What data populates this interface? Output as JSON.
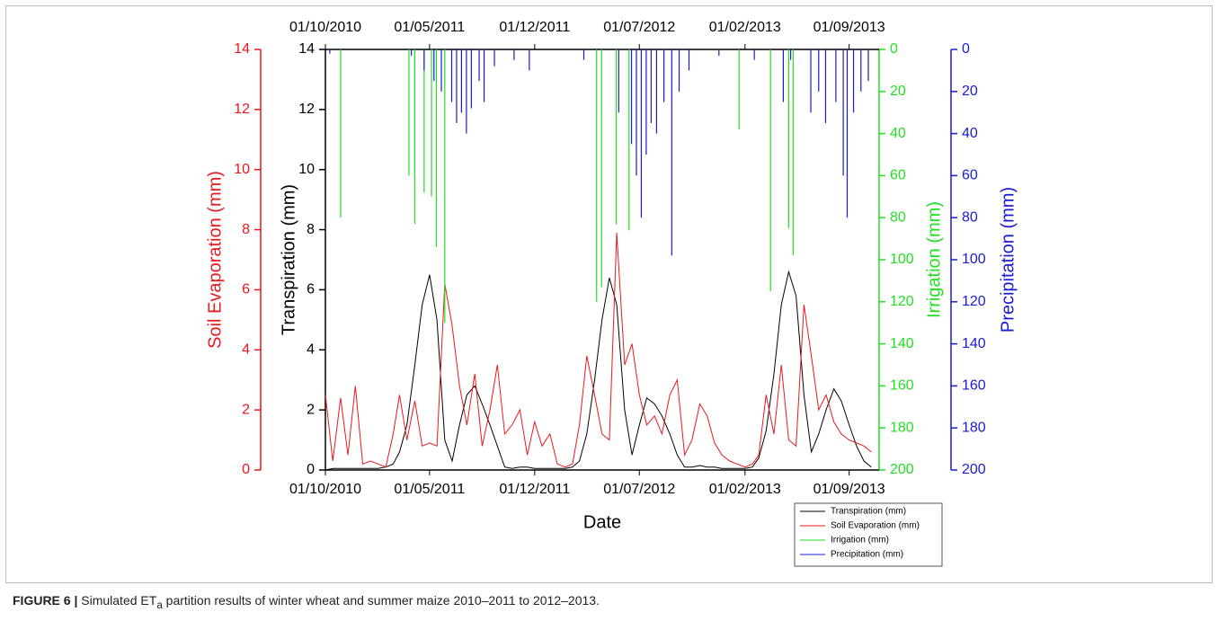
{
  "chart_data": {
    "type": "line",
    "xlabel": "Date",
    "ylabel": "Transpiration (mm)",
    "y2label": "Soil Evaporation (mm)",
    "y3label": "Irrigation (mm)",
    "y4label": "Precipitation (mm)",
    "xlim": [
      "2010-10-01",
      "2013-11-01"
    ],
    "xticks": [
      {
        "value": "2010-10-01",
        "label": "01/10/2010"
      },
      {
        "value": "2011-05-01",
        "label": "01/05/2011"
      },
      {
        "value": "2011-12-01",
        "label": "01/12/2011"
      },
      {
        "value": "2012-07-01",
        "label": "01/07/2012"
      },
      {
        "value": "2013-02-01",
        "label": "01/02/2013"
      },
      {
        "value": "2013-09-01",
        "label": "01/09/2013"
      }
    ],
    "ylim": [
      0,
      14
    ],
    "yticks": [
      0,
      2,
      4,
      6,
      8,
      10,
      12,
      14
    ],
    "y2lim": [
      0,
      14
    ],
    "y2ticks": [
      0,
      2,
      4,
      6,
      8,
      10,
      12,
      14
    ],
    "y3lim": [
      200,
      0
    ],
    "y3ticks": [
      0,
      20,
      40,
      60,
      80,
      100,
      120,
      140,
      160,
      180,
      200
    ],
    "y4lim": [
      200,
      0
    ],
    "y4ticks": [
      0,
      20,
      40,
      60,
      80,
      100,
      120,
      140,
      160,
      180,
      200
    ],
    "legend": "lower right",
    "series": [
      {
        "name": "Transpiration (mm)",
        "color": "#000000",
        "axis": "y",
        "style": "line",
        "x": [
          "2010-10-01",
          "2010-10-16",
          "2010-11-01",
          "2010-11-16",
          "2010-12-01",
          "2010-12-16",
          "2011-01-01",
          "2011-01-16",
          "2011-02-01",
          "2011-02-16",
          "2011-03-01",
          "2011-03-16",
          "2011-04-01",
          "2011-04-16",
          "2011-05-01",
          "2011-05-16",
          "2011-06-01",
          "2011-06-16",
          "2011-07-01",
          "2011-07-16",
          "2011-08-01",
          "2011-08-16",
          "2011-09-01",
          "2011-09-16",
          "2011-10-01",
          "2011-10-16",
          "2011-11-01",
          "2011-11-16",
          "2011-12-01",
          "2011-12-16",
          "2012-01-01",
          "2012-01-16",
          "2012-02-01",
          "2012-02-16",
          "2012-03-01",
          "2012-03-16",
          "2012-04-01",
          "2012-04-16",
          "2012-05-01",
          "2012-05-16",
          "2012-06-01",
          "2012-06-16",
          "2012-07-01",
          "2012-07-16",
          "2012-08-01",
          "2012-08-16",
          "2012-09-01",
          "2012-09-16",
          "2012-10-01",
          "2012-10-16",
          "2012-11-01",
          "2012-11-16",
          "2012-12-01",
          "2012-12-16",
          "2013-01-01",
          "2013-01-16",
          "2013-02-01",
          "2013-02-16",
          "2013-03-01",
          "2013-03-16",
          "2013-04-01",
          "2013-04-16",
          "2013-05-01",
          "2013-05-16",
          "2013-06-01",
          "2013-06-16",
          "2013-07-01",
          "2013-07-16",
          "2013-08-01",
          "2013-08-16",
          "2013-09-01",
          "2013-09-16",
          "2013-10-01",
          "2013-10-16"
        ],
        "values": [
          0,
          0.05,
          0.05,
          0.05,
          0.05,
          0.05,
          0.05,
          0.05,
          0.1,
          0.2,
          0.6,
          1.5,
          3.5,
          5.5,
          6.5,
          5,
          1,
          0.3,
          1.5,
          2.5,
          2.8,
          2.2,
          1.5,
          0.8,
          0.1,
          0.05,
          0.1,
          0.1,
          0.05,
          0.05,
          0.05,
          0.05,
          0.05,
          0.1,
          0.3,
          1.2,
          3,
          5,
          6.4,
          5.5,
          2,
          0.5,
          1.5,
          2.4,
          2.2,
          1.8,
          1.2,
          0.5,
          0.1,
          0.1,
          0.15,
          0.1,
          0.1,
          0.05,
          0.05,
          0.05,
          0.05,
          0.1,
          0.4,
          1.3,
          3.2,
          5.5,
          6.6,
          5.8,
          2.5,
          0.6,
          1.2,
          2,
          2.7,
          2.3,
          1.5,
          0.8,
          0.3,
          0.1
        ]
      },
      {
        "name": "Soil Evaporation (mm)",
        "color": "#e8191c",
        "axis": "y2",
        "style": "line",
        "x": [
          "2010-10-01",
          "2010-10-16",
          "2010-11-01",
          "2010-11-16",
          "2010-12-01",
          "2010-12-16",
          "2011-01-01",
          "2011-01-16",
          "2011-02-01",
          "2011-02-16",
          "2011-03-01",
          "2011-03-16",
          "2011-04-01",
          "2011-04-16",
          "2011-05-01",
          "2011-05-16",
          "2011-06-01",
          "2011-06-16",
          "2011-07-01",
          "2011-07-16",
          "2011-08-01",
          "2011-08-16",
          "2011-09-01",
          "2011-09-16",
          "2011-10-01",
          "2011-10-16",
          "2011-11-01",
          "2011-11-16",
          "2011-12-01",
          "2011-12-16",
          "2012-01-01",
          "2012-01-16",
          "2012-02-01",
          "2012-02-16",
          "2012-03-01",
          "2012-03-16",
          "2012-04-01",
          "2012-04-16",
          "2012-05-01",
          "2012-05-16",
          "2012-06-01",
          "2012-06-16",
          "2012-07-01",
          "2012-07-16",
          "2012-08-01",
          "2012-08-16",
          "2012-09-01",
          "2012-09-16",
          "2012-10-01",
          "2012-10-16",
          "2012-11-01",
          "2012-11-16",
          "2012-12-01",
          "2012-12-16",
          "2013-01-01",
          "2013-01-16",
          "2013-02-01",
          "2013-02-16",
          "2013-03-01",
          "2013-03-16",
          "2013-04-01",
          "2013-04-16",
          "2013-05-01",
          "2013-05-16",
          "2013-06-01",
          "2013-06-16",
          "2013-07-01",
          "2013-07-16",
          "2013-08-01",
          "2013-08-16",
          "2013-09-01",
          "2013-09-16",
          "2013-10-01",
          "2013-10-16"
        ],
        "values": [
          2.5,
          0.3,
          2.4,
          0.5,
          2.8,
          0.2,
          0.3,
          0.2,
          0.1,
          1.2,
          2.5,
          1.0,
          2.3,
          0.8,
          0.9,
          0.8,
          6.2,
          4.8,
          2.8,
          1.5,
          3.2,
          0.8,
          2.0,
          3.5,
          1.2,
          1.5,
          2.0,
          0.5,
          1.6,
          0.8,
          1.2,
          0.2,
          0.1,
          0.2,
          1.5,
          3.8,
          2.5,
          1.2,
          1.0,
          7.9,
          3.5,
          4.2,
          2.5,
          1.5,
          1.8,
          1.2,
          2.5,
          3.0,
          0.5,
          1.0,
          2.2,
          1.8,
          0.9,
          0.5,
          0.3,
          0.2,
          0.1,
          0.2,
          0.5,
          2.5,
          1.2,
          3.5,
          1.0,
          0.8,
          5.5,
          3.8,
          2.0,
          2.5,
          1.6,
          1.2,
          1.0,
          0.9,
          0.8,
          0.6
        ]
      },
      {
        "name": "Irrigation (mm)",
        "color": "#22e022",
        "axis": "y3",
        "style": "spikes",
        "x": [
          "2010-11-01",
          "2011-03-20",
          "2011-04-01",
          "2011-04-20",
          "2011-05-05",
          "2011-05-15",
          "2011-06-01",
          "2012-04-05",
          "2012-04-15",
          "2012-05-15",
          "2012-06-10",
          "2013-01-20",
          "2013-03-25",
          "2013-05-01",
          "2013-05-10"
        ],
        "values": [
          80,
          60,
          83,
          68,
          70,
          94,
          130,
          120,
          113,
          83,
          86,
          38,
          115,
          85,
          98
        ]
      },
      {
        "name": "Precipitation (mm)",
        "color": "#1a1ad6",
        "axis": "y4",
        "style": "spikes",
        "x": [
          "2010-10-10",
          "2011-03-25",
          "2011-04-20",
          "2011-05-10",
          "2011-05-25",
          "2011-06-15",
          "2011-06-25",
          "2011-07-05",
          "2011-07-15",
          "2011-07-25",
          "2011-08-10",
          "2011-08-20",
          "2011-09-10",
          "2011-10-20",
          "2011-11-20",
          "2012-03-10",
          "2012-05-20",
          "2012-06-15",
          "2012-06-25",
          "2012-07-05",
          "2012-07-15",
          "2012-07-25",
          "2012-08-05",
          "2012-08-20",
          "2012-09-05",
          "2012-09-20",
          "2012-10-10",
          "2012-12-10",
          "2013-02-20",
          "2013-04-20",
          "2013-05-05",
          "2013-06-15",
          "2013-07-01",
          "2013-07-15",
          "2013-08-05",
          "2013-08-20",
          "2013-08-28",
          "2013-09-10",
          "2013-09-25",
          "2013-10-10"
        ],
        "values": [
          2,
          3,
          10,
          15,
          20,
          25,
          35,
          30,
          40,
          28,
          15,
          25,
          8,
          5,
          10,
          5,
          30,
          45,
          60,
          80,
          50,
          35,
          40,
          25,
          98,
          20,
          10,
          3,
          5,
          25,
          5,
          30,
          20,
          35,
          25,
          60,
          80,
          30,
          20,
          15
        ]
      }
    ]
  },
  "figure_caption": {
    "label": "FIGURE 6 |",
    "text": " Simulated ET",
    "subscript": "a",
    "text_end": " partition results of winter wheat and summer maize 2010–2011 to 2012–2013."
  }
}
